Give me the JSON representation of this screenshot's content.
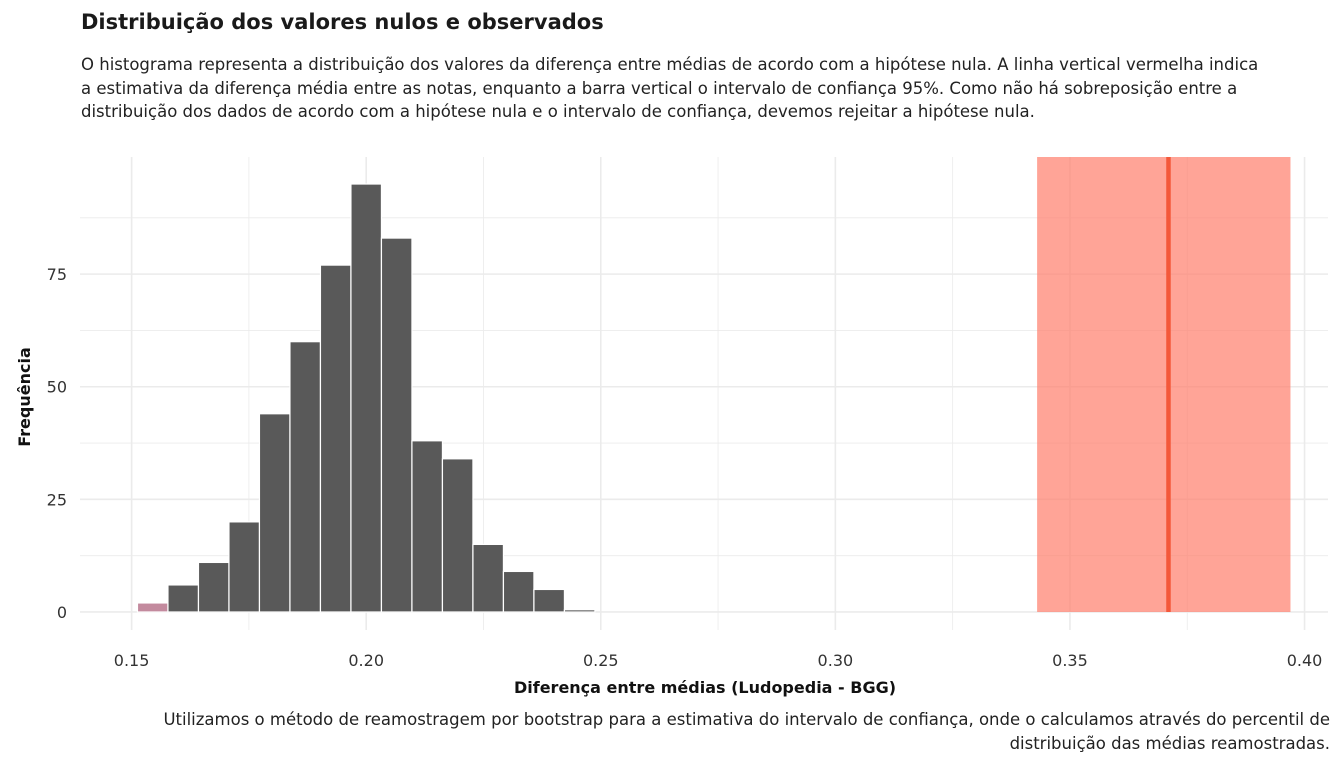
{
  "chart_data": {
    "type": "bar",
    "title": "Distribuição dos valores nulos e observados",
    "subtitle": "O histograma representa a distribuição dos valores da diferença entre médias de acordo com a hipótese nula. A linha vertical vermelha indica a estimativa da diferença média entre as notas, enquanto a barra vertical o intervalo de confiança 95%. Como não há sobreposição entre a distribuição dos dados de acordo com a hipótese nula e o intervalo de confiança, devemos rejeitar a hipótese nula.",
    "caption": "Utilizamos o método de reamostragem por bootstrap para a estimativa do intervalo de confiança, onde o calculamos através do percentil de distribuição das médias reamostradas.",
    "xlabel": "Diferença entre médias (Ludopedia - BGG)",
    "ylabel": "Frequência",
    "xlim": [
      0.139,
      0.405
    ],
    "ylim": [
      -4,
      101
    ],
    "xticks": [
      0.15,
      0.2,
      0.25,
      0.3,
      0.35,
      0.4
    ],
    "xtick_labels": [
      "0.15",
      "0.20",
      "0.25",
      "0.30",
      "0.35",
      "0.40"
    ],
    "yticks": [
      0,
      25,
      50,
      75
    ],
    "ytick_labels": [
      "0",
      "25",
      "50",
      "75"
    ],
    "grid": true,
    "bin_width": 0.0065,
    "bins": [
      {
        "x": 0.1545,
        "count": 2,
        "color": "#c38a9e"
      },
      {
        "x": 0.161,
        "count": 6
      },
      {
        "x": 0.1675,
        "count": 11
      },
      {
        "x": 0.174,
        "count": 20
      },
      {
        "x": 0.1805,
        "count": 44
      },
      {
        "x": 0.187,
        "count": 60
      },
      {
        "x": 0.1935,
        "count": 77
      },
      {
        "x": 0.2,
        "count": 95
      },
      {
        "x": 0.2065,
        "count": 83
      },
      {
        "x": 0.213,
        "count": 38
      },
      {
        "x": 0.2195,
        "count": 34
      },
      {
        "x": 0.226,
        "count": 15
      },
      {
        "x": 0.2325,
        "count": 9
      },
      {
        "x": 0.239,
        "count": 5
      },
      {
        "x": 0.2455,
        "count": 0.5
      }
    ],
    "confidence_interval": [
      0.343,
      0.397
    ],
    "estimate": 0.371,
    "colors": {
      "bar": "#595959",
      "bar_outline": "#ffffff",
      "interval": "#ff7d6b",
      "estimate_line": "#f4583a",
      "grid": "#ebebeb"
    }
  }
}
